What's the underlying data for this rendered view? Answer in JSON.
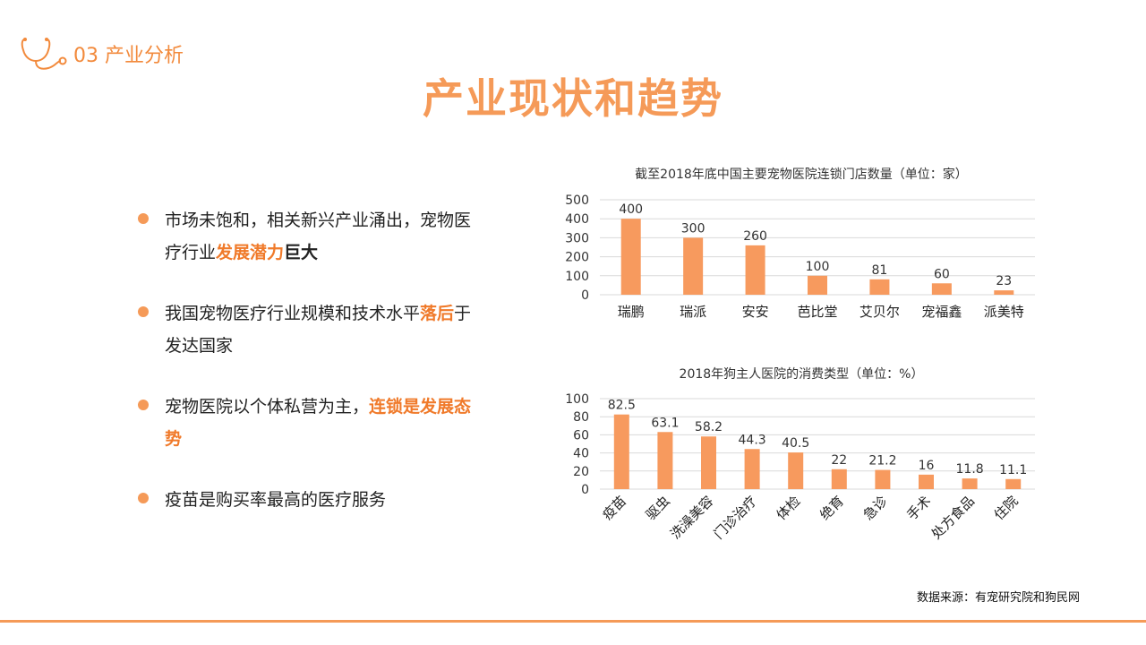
{
  "header": {
    "section": "03 产业分析",
    "title": "产业现状和趋势"
  },
  "bullets": [
    {
      "parts": [
        {
          "t": "市场未饱和，相关新兴产业涌出，宠物医疗行业",
          "s": "n"
        },
        {
          "t": "发展潜力",
          "s": "h"
        },
        {
          "t": "巨大",
          "s": "b"
        }
      ]
    },
    {
      "parts": [
        {
          "t": "我国宠物医疗行业规模和技术水平",
          "s": "n"
        },
        {
          "t": "落后",
          "s": "h"
        },
        {
          "t": "于发达国家",
          "s": "n"
        }
      ]
    },
    {
      "parts": [
        {
          "t": "宠物医院以个体私营为主，",
          "s": "n"
        },
        {
          "t": "连锁是发展态势",
          "s": "h"
        }
      ]
    },
    {
      "parts": [
        {
          "t": "疫苗是购买率最高的医疗服务",
          "s": "n"
        }
      ]
    }
  ],
  "source": "数据来源：有宠研究院和狗民网",
  "colors": {
    "accent": "#f59a58",
    "bar": "#f79a5e",
    "highlight": "#f07a2a"
  },
  "icons": {
    "section": "stethoscope-icon"
  },
  "chart_data": [
    {
      "type": "bar",
      "title": "截至2018年底中国主要宠物医院连锁门店数量（单位：家）",
      "categories": [
        "瑞鹏",
        "瑞派",
        "安安",
        "芭比堂",
        "艾贝尔",
        "宠福鑫",
        "派美特"
      ],
      "values": [
        400,
        300,
        260,
        100,
        81,
        60,
        23
      ],
      "ylim": [
        0,
        500
      ],
      "yticks": [
        0,
        100,
        200,
        300,
        400,
        500
      ],
      "grid": true,
      "data_labels": true
    },
    {
      "type": "bar",
      "title": "2018年狗主人医院的消费类型（单位：%）",
      "categories": [
        "疫苗",
        "驱虫",
        "洗澡美容",
        "门诊治疗",
        "体检",
        "绝育",
        "急诊",
        "手术",
        "处方食品",
        "住院"
      ],
      "values": [
        82.5,
        63.1,
        58.2,
        44.3,
        40.5,
        22,
        21.2,
        16,
        11.8,
        11.1
      ],
      "ylim": [
        0,
        100
      ],
      "yticks": [
        0,
        20,
        40,
        60,
        80,
        100
      ],
      "grid": true,
      "data_labels": true,
      "rotated_labels": true
    }
  ]
}
